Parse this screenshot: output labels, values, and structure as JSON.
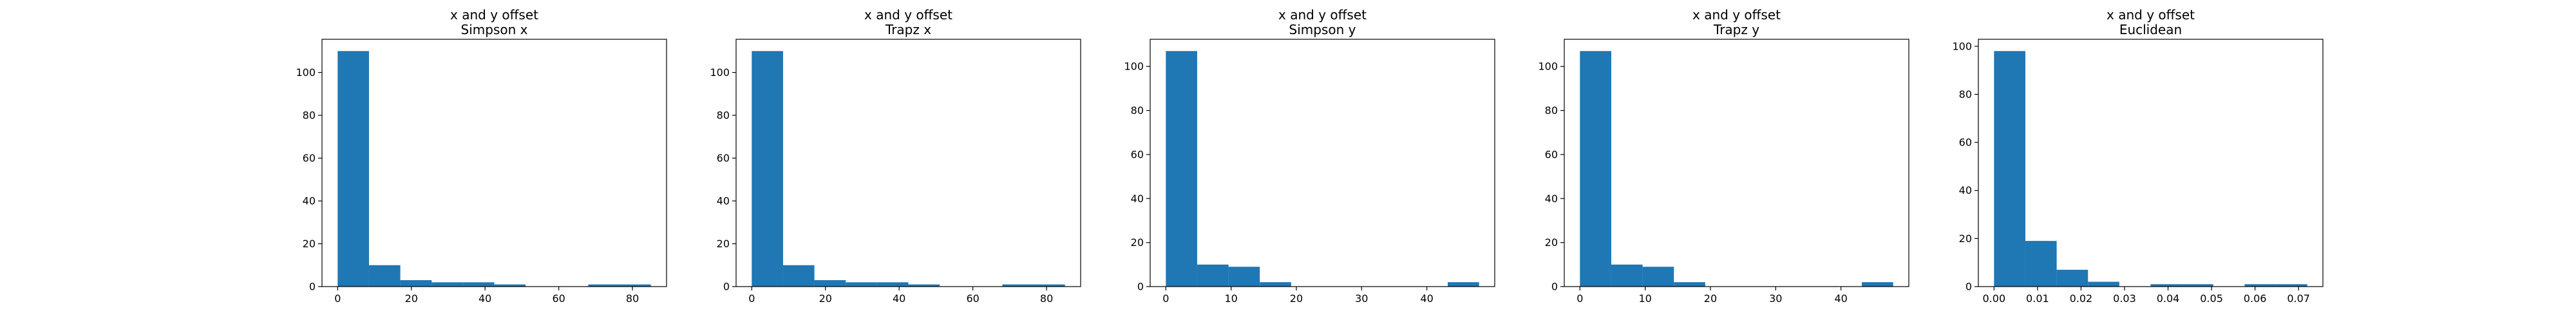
{
  "chart_data": [
    {
      "type": "bar",
      "title": "x and y offset",
      "subtitle": "Simpson x",
      "xlabel": "",
      "ylabel": "",
      "xlim": [
        -4.25,
        89.25
      ],
      "ylim": [
        0,
        115.5
      ],
      "xticks": [
        0,
        20,
        40,
        60,
        80
      ],
      "yticks": [
        0,
        20,
        40,
        60,
        80,
        100
      ],
      "xtick_labels": [
        "0",
        "20",
        "40",
        "60",
        "80"
      ],
      "ytick_labels": [
        "0",
        "20",
        "40",
        "60",
        "80",
        "100"
      ],
      "bin_edges": [
        0,
        8.5,
        17,
        25.5,
        34,
        42.5,
        51,
        59.5,
        68,
        76.5,
        85
      ],
      "values": [
        110,
        10,
        3,
        2,
        2,
        1,
        0,
        0,
        1,
        1
      ],
      "color": "#1f77b4",
      "grid": false
    },
    {
      "type": "bar",
      "title": "x and y offset",
      "subtitle": "Trapz x",
      "xlabel": "",
      "ylabel": "",
      "xlim": [
        -4.25,
        89.25
      ],
      "ylim": [
        0,
        115.5
      ],
      "xticks": [
        0,
        20,
        40,
        60,
        80
      ],
      "yticks": [
        0,
        20,
        40,
        60,
        80,
        100
      ],
      "xtick_labels": [
        "0",
        "20",
        "40",
        "60",
        "80"
      ],
      "ytick_labels": [
        "0",
        "20",
        "40",
        "60",
        "80",
        "100"
      ],
      "bin_edges": [
        0,
        8.5,
        17,
        25.5,
        34,
        42.5,
        51,
        59.5,
        68,
        76.5,
        85
      ],
      "values": [
        110,
        10,
        3,
        2,
        2,
        1,
        0,
        0,
        1,
        1
      ],
      "color": "#1f77b4",
      "grid": false
    },
    {
      "type": "bar",
      "title": "x and y offset",
      "subtitle": "Simpson y",
      "xlabel": "",
      "ylabel": "",
      "xlim": [
        -2.4,
        50.4
      ],
      "ylim": [
        0,
        112.35
      ],
      "xticks": [
        0,
        10,
        20,
        30,
        40
      ],
      "yticks": [
        0,
        20,
        40,
        60,
        80,
        100
      ],
      "xtick_labels": [
        "0",
        "10",
        "20",
        "30",
        "40"
      ],
      "ytick_labels": [
        "0",
        "20",
        "40",
        "60",
        "80",
        "100"
      ],
      "bin_edges": [
        0,
        4.8,
        9.6,
        14.4,
        19.2,
        24,
        28.8,
        33.6,
        38.4,
        43.2,
        48
      ],
      "values": [
        107,
        10,
        9,
        2,
        0,
        0,
        0,
        0,
        0,
        2
      ],
      "color": "#1f77b4",
      "grid": false
    },
    {
      "type": "bar",
      "title": "x and y offset",
      "subtitle": "Trapz y",
      "xlabel": "",
      "ylabel": "",
      "xlim": [
        -2.4,
        50.4
      ],
      "ylim": [
        0,
        112.35
      ],
      "xticks": [
        0,
        10,
        20,
        30,
        40
      ],
      "yticks": [
        0,
        20,
        40,
        60,
        80,
        100
      ],
      "xtick_labels": [
        "0",
        "10",
        "20",
        "30",
        "40"
      ],
      "ytick_labels": [
        "0",
        "20",
        "40",
        "60",
        "80",
        "100"
      ],
      "bin_edges": [
        0,
        4.8,
        9.6,
        14.4,
        19.2,
        24,
        28.8,
        33.6,
        38.4,
        43.2,
        48
      ],
      "values": [
        107,
        10,
        9,
        2,
        0,
        0,
        0,
        0,
        0,
        2
      ],
      "color": "#1f77b4",
      "grid": false
    },
    {
      "type": "bar",
      "title": "x and y offset",
      "subtitle": "Euclidean",
      "xlabel": "",
      "ylabel": "",
      "xlim": [
        -0.0036,
        0.0756
      ],
      "ylim": [
        0,
        102.9
      ],
      "xticks": [
        0,
        0.01,
        0.02,
        0.03,
        0.04,
        0.05,
        0.06,
        0.07
      ],
      "yticks": [
        0,
        20,
        40,
        60,
        80,
        100
      ],
      "xtick_labels": [
        "0.00",
        "0.01",
        "0.02",
        "0.03",
        "0.04",
        "0.05",
        "0.06",
        "0.07"
      ],
      "ytick_labels": [
        "0",
        "20",
        "40",
        "60",
        "80",
        "100"
      ],
      "bin_edges": [
        0,
        0.0072,
        0.0144,
        0.0216,
        0.0288,
        0.036,
        0.0432,
        0.0504,
        0.0576,
        0.0648,
        0.072
      ],
      "values": [
        98,
        19,
        7,
        2,
        0,
        1,
        1,
        0,
        1,
        1
      ],
      "color": "#1f77b4",
      "grid": false
    }
  ]
}
